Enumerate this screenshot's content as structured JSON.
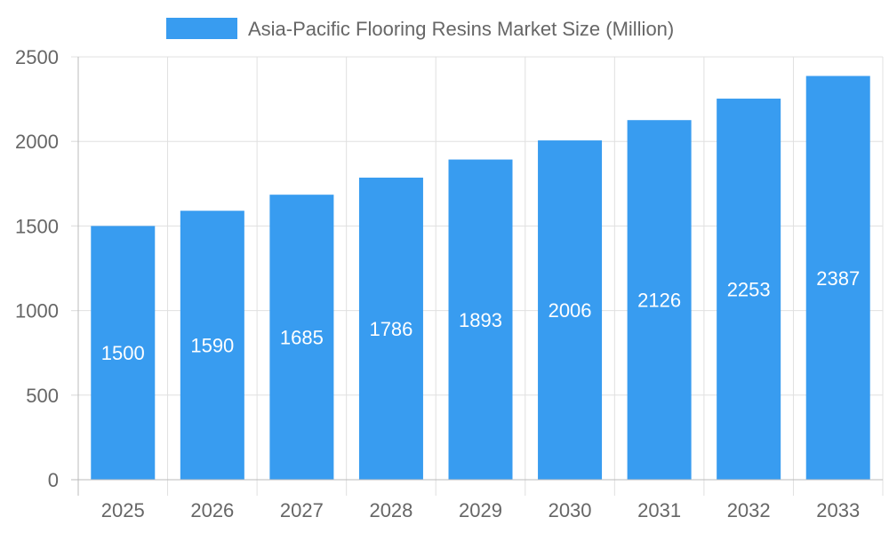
{
  "chart_data": {
    "type": "bar",
    "title": "",
    "xlabel": "",
    "ylabel": "",
    "categories": [
      "2025",
      "2026",
      "2027",
      "2028",
      "2029",
      "2030",
      "2031",
      "2032",
      "2033"
    ],
    "series": [
      {
        "name": "Asia-Pacific Flooring Resins Market Size (Million)",
        "values": [
          1500,
          1590,
          1685,
          1786,
          1893,
          2006,
          2126,
          2253,
          2387
        ],
        "color": "#389cf0"
      }
    ],
    "ylim": [
      0,
      2500
    ],
    "yticks": [
      0,
      500,
      1000,
      1500,
      2000,
      2500
    ],
    "grid": true,
    "legend_position": "top",
    "data_labels": true
  }
}
